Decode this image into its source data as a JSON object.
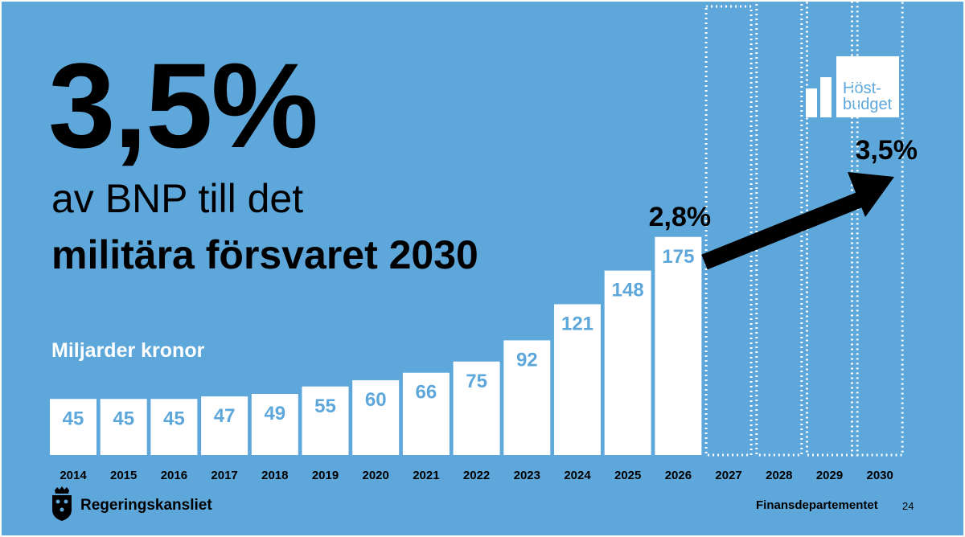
{
  "headline": "3,5%",
  "subtitle_line1": "av BNP till det",
  "subtitle_line2": "militära försvaret 2030",
  "badge": {
    "text": "Höst-\nbudget",
    "icon": "bar-chart-icon"
  },
  "footer": {
    "logo_text": "Regeringskansliet",
    "department": "Finansdepartementet",
    "page": "24"
  },
  "colors": {
    "background": "#5ea7db",
    "bar": "#ffffff",
    "value_text": "#5ea7db",
    "arrow": "#000000"
  },
  "chart_data": {
    "type": "bar",
    "unit_label": "Miljarder kronor",
    "categories": [
      "2014",
      "2015",
      "2016",
      "2017",
      "2018",
      "2019",
      "2020",
      "2021",
      "2022",
      "2023",
      "2024",
      "2025",
      "2026",
      "2027",
      "2028",
      "2029",
      "2030"
    ],
    "values": [
      45,
      45,
      45,
      47,
      49,
      55,
      60,
      66,
      75,
      92,
      121,
      148,
      175,
      null,
      null,
      null,
      null
    ],
    "value_labels": [
      "45",
      "45",
      "45",
      "47",
      "49",
      "55",
      "60",
      "66",
      "75",
      "92",
      "121",
      "148",
      "175",
      "",
      "",
      "",
      ""
    ],
    "projected_categories": [
      "2027",
      "2028",
      "2029",
      "2030"
    ],
    "annotations": [
      {
        "category": "2026",
        "text": "2,8%"
      },
      {
        "category": "2030",
        "text": "3,5%"
      }
    ],
    "legend": "none",
    "grid": false
  }
}
